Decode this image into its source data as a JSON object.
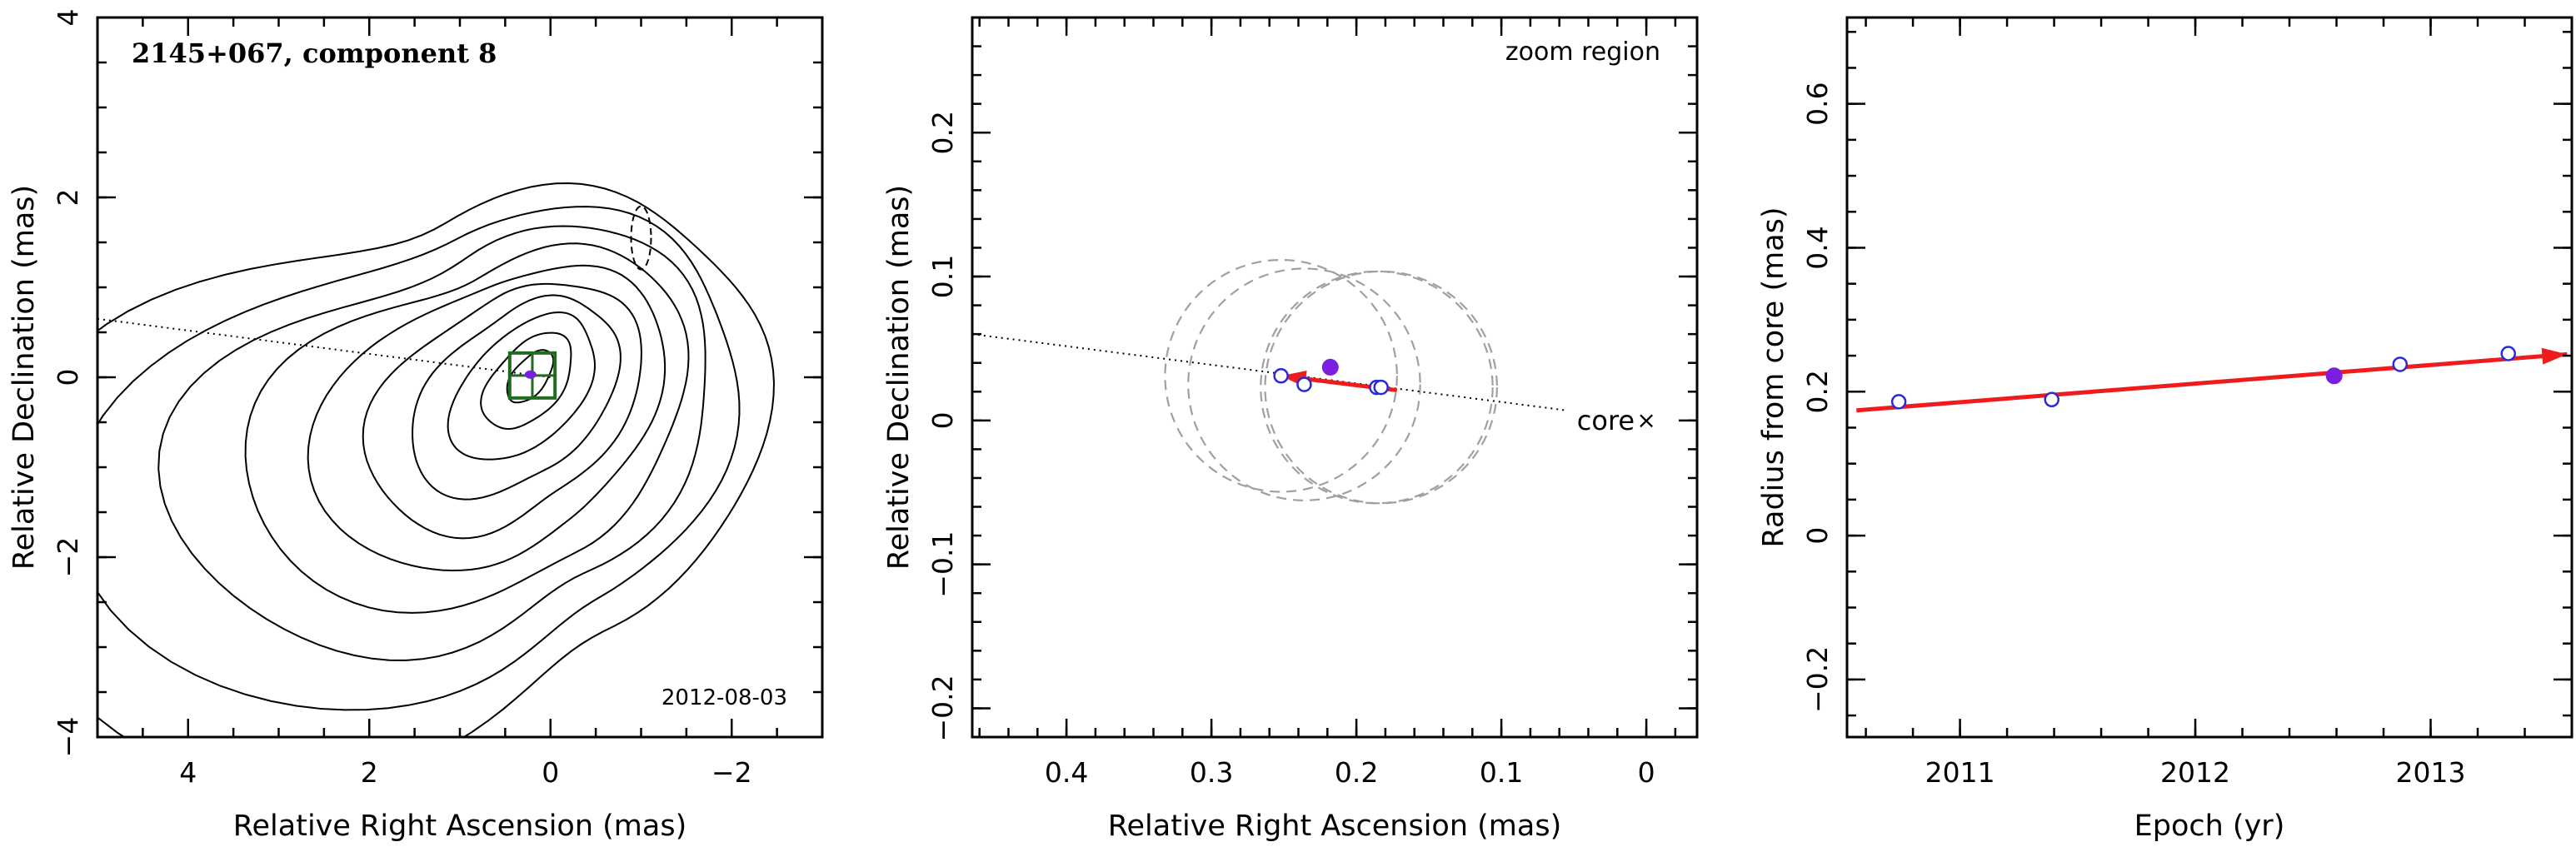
{
  "chart_data": [
    {
      "type": "contour",
      "title": "2145+067, component 8",
      "date": "2012-08-03",
      "xlabel": "Relative Right Ascension (mas)",
      "ylabel": "Relative Declination (mas)",
      "xlim": [
        5,
        -3
      ],
      "ylim": [
        -4,
        4
      ],
      "xticks": [
        4,
        2,
        0,
        -2
      ],
      "yticks": [
        -4,
        -2,
        0,
        2,
        4
      ],
      "xtick_labels": [
        "4",
        "2",
        "0",
        "−2"
      ],
      "ytick_labels": [
        "−4",
        "−2",
        "0",
        "2",
        "4"
      ],
      "component_position": [
        0.22,
        0.03
      ],
      "zoom_box": {
        "ra": [
          -0.05,
          0.45
        ],
        "dec": [
          -0.23,
          0.27
        ]
      },
      "negative_contour_center": [
        -1.0,
        1.55
      ],
      "dotted_line": {
        "from": [
          5.0,
          0.65
        ],
        "to": [
          0.0,
          0.0
        ]
      },
      "colors": {
        "zoom_box": "#1f6b1f",
        "component": "#7a1fe0"
      }
    },
    {
      "type": "scatter",
      "annotation": "zoom region",
      "core_label": "core",
      "core_marker": "×",
      "xlabel": "Relative Right Ascension (mas)",
      "ylabel": "Relative Declination (mas)",
      "xlim": [
        0.465,
        -0.035
      ],
      "ylim": [
        -0.22,
        0.28
      ],
      "xticks": [
        0.4,
        0.3,
        0.2,
        0.1,
        0
      ],
      "yticks": [
        -0.2,
        -0.1,
        0,
        0.1,
        0.2
      ],
      "xtick_labels": [
        "0.4",
        "0.3",
        "0.2",
        "0.1",
        "0"
      ],
      "ytick_labels": [
        "−0.2",
        "−0.1",
        "0",
        "0.1",
        "0.2"
      ],
      "points_open": [
        [
          0.252,
          0.031
        ],
        [
          0.236,
          0.025
        ],
        [
          0.186,
          0.023
        ],
        [
          0.183,
          0.023
        ]
      ],
      "point_filled": [
        0.218,
        0.037
      ],
      "ghost_circles": [
        {
          "center": [
            0.252,
            0.031
          ],
          "radius": 0.08
        },
        {
          "center": [
            0.236,
            0.025
          ],
          "radius": 0.08
        },
        {
          "center": [
            0.186,
            0.023
          ],
          "radius": 0.08
        },
        {
          "center": [
            0.183,
            0.023
          ],
          "radius": 0.08
        }
      ],
      "velocity_arrow": {
        "from": [
          0.172,
          0.021
        ],
        "to": [
          0.252,
          0.031
        ]
      },
      "dotted_line": {
        "from": [
          0.465,
          0.06
        ],
        "to": [
          0.055,
          0.007
        ]
      },
      "colors": {
        "arrow": "#ee1c1c",
        "open": "#2a2ad8",
        "filled": "#7a1fe0"
      }
    },
    {
      "type": "scatter",
      "xlabel": "Epoch (yr)",
      "ylabel": "Radius from core (mas)",
      "xlim": [
        2010.52,
        2013.6
      ],
      "ylim": [
        -0.28,
        0.72
      ],
      "xticks": [
        2011,
        2012,
        2013
      ],
      "yticks": [
        -0.2,
        0,
        0.2,
        0.4,
        0.6
      ],
      "xtick_labels": [
        "2011",
        "2012",
        "2013"
      ],
      "ytick_labels": [
        "−0.2",
        "0",
        "0.2",
        "0.4",
        "0.6"
      ],
      "points_open": [
        [
          2010.74,
          0.186
        ],
        [
          2011.39,
          0.189
        ],
        [
          2012.87,
          0.238
        ],
        [
          2013.33,
          0.253
        ]
      ],
      "point_filled": [
        2012.59,
        0.222
      ],
      "fit_arrow": {
        "from": [
          2010.56,
          0.174
        ],
        "to": [
          2013.58,
          0.252
        ]
      },
      "colors": {
        "arrow": "#ee1c1c",
        "open": "#2a2ad8",
        "filled": "#7a1fe0"
      }
    }
  ]
}
